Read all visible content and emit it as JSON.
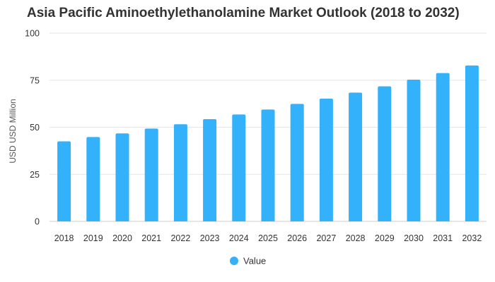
{
  "chart_data": {
    "type": "bar",
    "title": "Asia Pacific Aminoethylethanolamine Market Outlook (2018 to 2032)",
    "xlabel": "",
    "ylabel": "USD USD Million",
    "ylim": [
      0,
      100
    ],
    "yticks": [
      0,
      25,
      50,
      75,
      100
    ],
    "grid": true,
    "legend_position": "bottom",
    "categories": [
      "2018",
      "2019",
      "2020",
      "2021",
      "2022",
      "2023",
      "2024",
      "2025",
      "2026",
      "2027",
      "2028",
      "2029",
      "2030",
      "2031",
      "2032"
    ],
    "series": [
      {
        "name": "Value",
        "color": "#33b1fb",
        "values": [
          42.5,
          44.8,
          46.7,
          49.3,
          51.6,
          54.3,
          56.8,
          59.4,
          62.4,
          65.2,
          68.4,
          71.7,
          75.3,
          78.8,
          82.8
        ]
      }
    ]
  }
}
